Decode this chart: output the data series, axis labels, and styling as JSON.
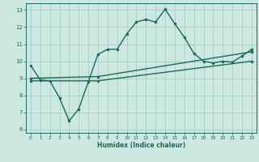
{
  "xlabel": "Humidex (Indice chaleur)",
  "xlim": [
    -0.5,
    23.5
  ],
  "ylim": [
    5.8,
    13.4
  ],
  "xticks": [
    0,
    1,
    2,
    3,
    4,
    5,
    6,
    7,
    8,
    9,
    10,
    11,
    12,
    13,
    14,
    15,
    16,
    17,
    18,
    19,
    20,
    21,
    22,
    23
  ],
  "yticks": [
    6,
    7,
    8,
    9,
    10,
    11,
    12,
    13
  ],
  "bg_color": "#cce8e0",
  "grid_color": "#a8ccc4",
  "line_color": "#1a6b5a",
  "line1_x": [
    0,
    1,
    2,
    3,
    4,
    5,
    6,
    7,
    8,
    9,
    10,
    11,
    12,
    13,
    14,
    15,
    16,
    17,
    18,
    19,
    20,
    21,
    22,
    23
  ],
  "line1_y": [
    9.75,
    8.9,
    8.85,
    7.85,
    6.5,
    7.2,
    8.8,
    10.4,
    10.7,
    10.7,
    11.6,
    12.3,
    12.45,
    12.3,
    13.05,
    12.2,
    11.4,
    10.45,
    10.0,
    9.9,
    10.0,
    9.95,
    10.3,
    10.7
  ],
  "line2_x": [
    0,
    7,
    23
  ],
  "line2_y": [
    8.85,
    8.85,
    10.0
  ],
  "line3_x": [
    0,
    7,
    23
  ],
  "line3_y": [
    9.0,
    9.1,
    10.55
  ],
  "marker_size": 2.5,
  "line_width": 1.0
}
